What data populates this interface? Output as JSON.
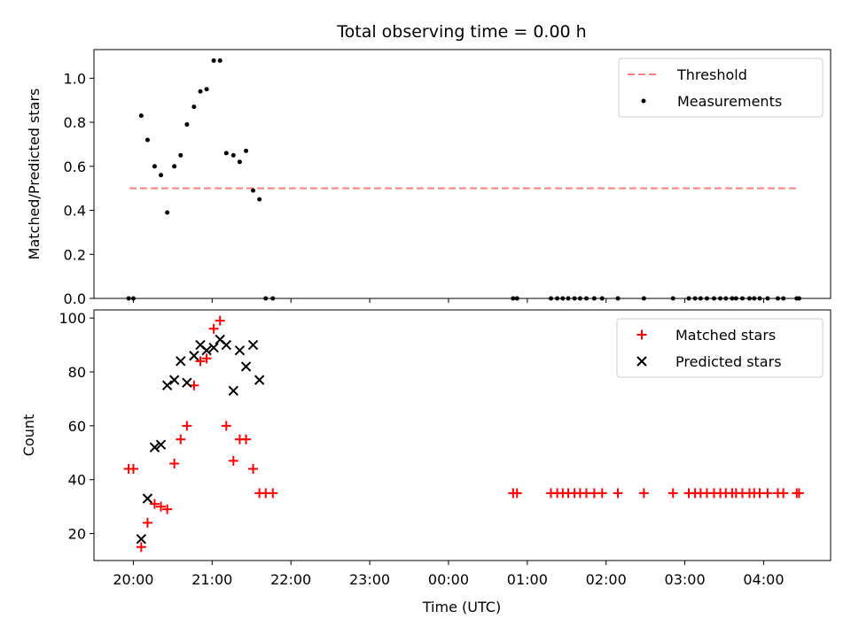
{
  "chart_data": {
    "title": "Total observing time = 0.00 h",
    "xlabel": "Time (UTC)",
    "x_tick_labels": [
      "20:00",
      "21:00",
      "22:00",
      "23:00",
      "00:00",
      "01:00",
      "02:00",
      "03:00",
      "04:00"
    ],
    "x_tick_hours": [
      0,
      1,
      2,
      3,
      4,
      5,
      6,
      7,
      8
    ],
    "xlim_hours_after_20": [
      -0.5,
      8.85
    ],
    "colors": {
      "threshold": "#ff8080",
      "measurements": "#000000",
      "matched": "#ff0000",
      "predicted": "#000000"
    },
    "panels": [
      {
        "type": "scatter",
        "ylabel": "Matched/Predicted stars",
        "ylim": [
          0,
          1.13
        ],
        "y_ticks": [
          "0.0",
          "0.2",
          "0.4",
          "0.6",
          "0.8",
          "1.0"
        ],
        "y_tick_values": [
          0,
          0.2,
          0.4,
          0.6,
          0.8,
          1.0
        ],
        "threshold": {
          "name": "Threshold",
          "value": 0.5,
          "x_range_hours": [
            -0.05,
            8.45
          ]
        },
        "legend": {
          "placement": "top-right",
          "entries": [
            "Threshold",
            "Measurements"
          ]
        },
        "series": [
          {
            "name": "Measurements",
            "points": [
              [
                -0.06,
                0.0
              ],
              [
                0.0,
                0.0
              ],
              [
                0.1,
                0.83
              ],
              [
                0.18,
                0.72
              ],
              [
                0.27,
                0.6
              ],
              [
                0.35,
                0.56
              ],
              [
                0.43,
                0.39
              ],
              [
                0.52,
                0.6
              ],
              [
                0.6,
                0.65
              ],
              [
                0.68,
                0.79
              ],
              [
                0.77,
                0.87
              ],
              [
                0.85,
                0.94
              ],
              [
                0.93,
                0.95
              ],
              [
                1.02,
                1.08
              ],
              [
                1.1,
                1.08
              ],
              [
                1.18,
                0.66
              ],
              [
                1.27,
                0.65
              ],
              [
                1.35,
                0.62
              ],
              [
                1.43,
                0.67
              ],
              [
                1.52,
                0.49
              ],
              [
                1.6,
                0.45
              ],
              [
                1.68,
                0.0
              ],
              [
                1.77,
                0.0
              ],
              [
                4.82,
                0.0
              ],
              [
                4.87,
                0.0
              ],
              [
                5.3,
                0.0
              ],
              [
                5.38,
                0.0
              ],
              [
                5.45,
                0.0
              ],
              [
                5.52,
                0.0
              ],
              [
                5.6,
                0.0
              ],
              [
                5.67,
                0.0
              ],
              [
                5.75,
                0.0
              ],
              [
                5.85,
                0.0
              ],
              [
                5.95,
                0.0
              ],
              [
                6.15,
                0.0
              ],
              [
                6.48,
                0.0
              ],
              [
                6.85,
                0.0
              ],
              [
                7.05,
                0.0
              ],
              [
                7.13,
                0.0
              ],
              [
                7.2,
                0.0
              ],
              [
                7.28,
                0.0
              ],
              [
                7.37,
                0.0
              ],
              [
                7.45,
                0.0
              ],
              [
                7.52,
                0.0
              ],
              [
                7.6,
                0.0
              ],
              [
                7.65,
                0.0
              ],
              [
                7.73,
                0.0
              ],
              [
                7.82,
                0.0
              ],
              [
                7.88,
                0.0
              ],
              [
                7.95,
                0.0
              ],
              [
                8.05,
                0.0
              ],
              [
                8.18,
                0.0
              ],
              [
                8.25,
                0.0
              ],
              [
                8.42,
                0.0
              ],
              [
                8.45,
                0.0
              ]
            ]
          }
        ]
      },
      {
        "type": "scatter",
        "ylabel": "Count",
        "ylim": [
          10,
          103
        ],
        "y_ticks": [
          "20",
          "40",
          "60",
          "80",
          "100"
        ],
        "y_tick_values": [
          20,
          40,
          60,
          80,
          100
        ],
        "legend": {
          "placement": "top-right",
          "entries": [
            "Matched stars",
            "Predicted stars"
          ]
        },
        "series": [
          {
            "name": "Matched stars",
            "marker": "+",
            "points": [
              [
                -0.06,
                44
              ],
              [
                0.0,
                44
              ],
              [
                0.1,
                15
              ],
              [
                0.18,
                24
              ],
              [
                0.27,
                31
              ],
              [
                0.35,
                30
              ],
              [
                0.43,
                29
              ],
              [
                0.52,
                46
              ],
              [
                0.6,
                55
              ],
              [
                0.68,
                60
              ],
              [
                0.77,
                75
              ],
              [
                0.85,
                84
              ],
              [
                0.93,
                85
              ],
              [
                1.02,
                96
              ],
              [
                1.1,
                99
              ],
              [
                1.18,
                60
              ],
              [
                1.27,
                47
              ],
              [
                1.35,
                55
              ],
              [
                1.43,
                55
              ],
              [
                1.52,
                44
              ],
              [
                1.6,
                35
              ],
              [
                1.68,
                35
              ],
              [
                1.77,
                35
              ],
              [
                4.82,
                35
              ],
              [
                4.87,
                35
              ],
              [
                5.3,
                35
              ],
              [
                5.38,
                35
              ],
              [
                5.45,
                35
              ],
              [
                5.52,
                35
              ],
              [
                5.6,
                35
              ],
              [
                5.67,
                35
              ],
              [
                5.75,
                35
              ],
              [
                5.85,
                35
              ],
              [
                5.95,
                35
              ],
              [
                6.15,
                35
              ],
              [
                6.48,
                35
              ],
              [
                6.85,
                35
              ],
              [
                7.05,
                35
              ],
              [
                7.13,
                35
              ],
              [
                7.2,
                35
              ],
              [
                7.28,
                35
              ],
              [
                7.37,
                35
              ],
              [
                7.45,
                35
              ],
              [
                7.52,
                35
              ],
              [
                7.6,
                35
              ],
              [
                7.65,
                35
              ],
              [
                7.73,
                35
              ],
              [
                7.82,
                35
              ],
              [
                7.88,
                35
              ],
              [
                7.95,
                35
              ],
              [
                8.05,
                35
              ],
              [
                8.18,
                35
              ],
              [
                8.25,
                35
              ],
              [
                8.42,
                35
              ],
              [
                8.45,
                35
              ]
            ]
          },
          {
            "name": "Predicted stars",
            "marker": "x",
            "points": [
              [
                0.1,
                18
              ],
              [
                0.18,
                33
              ],
              [
                0.27,
                52
              ],
              [
                0.35,
                53
              ],
              [
                0.43,
                75
              ],
              [
                0.52,
                77
              ],
              [
                0.6,
                84
              ],
              [
                0.68,
                76
              ],
              [
                0.77,
                86
              ],
              [
                0.85,
                90
              ],
              [
                0.93,
                88
              ],
              [
                1.02,
                89
              ],
              [
                1.1,
                92
              ],
              [
                1.18,
                90
              ],
              [
                1.27,
                73
              ],
              [
                1.35,
                88
              ],
              [
                1.43,
                82
              ],
              [
                1.52,
                90
              ],
              [
                1.6,
                77
              ]
            ]
          }
        ]
      }
    ]
  }
}
